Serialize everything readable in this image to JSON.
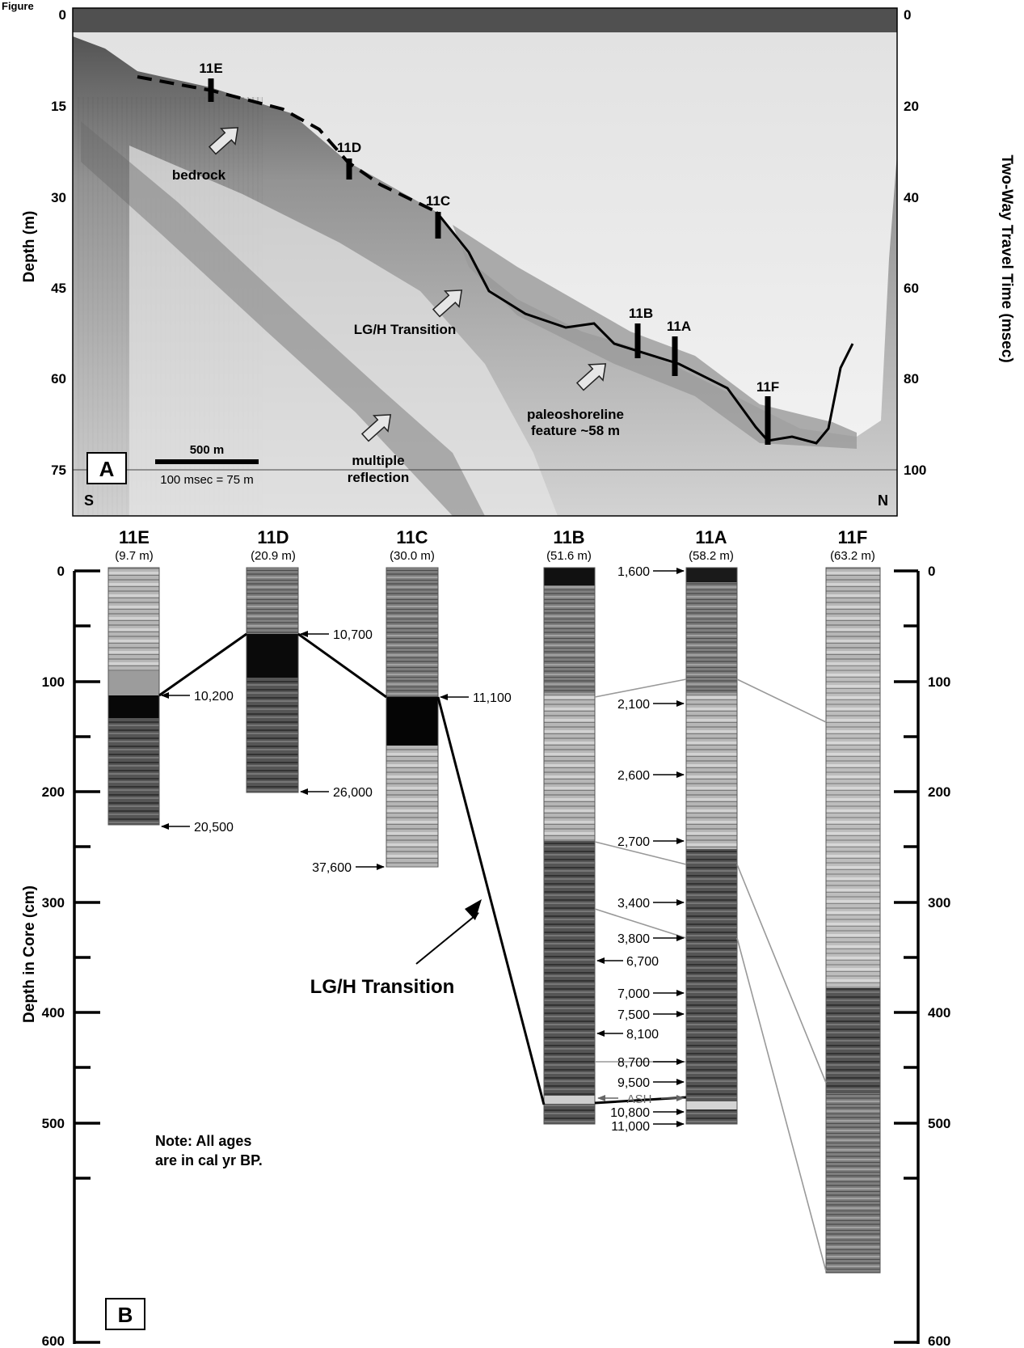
{
  "figure_label": "Figure",
  "panel_a": {
    "label": "A",
    "left_axis_label": "Depth (m)",
    "right_axis_label": "Two-Way Travel Time (msec)",
    "left_ticks": [
      "0",
      "15",
      "30",
      "45",
      "60",
      "75"
    ],
    "right_ticks": [
      "0",
      "20",
      "40",
      "60",
      "80",
      "100"
    ],
    "direction_left": "S",
    "direction_right": "N",
    "scale_bar_label": "500 m",
    "conversion_label": "100 msec = 75 m",
    "core_markers": [
      "11E",
      "11D",
      "11C",
      "11B",
      "11A",
      "11F"
    ],
    "annotations": {
      "bedrock": "bedrock",
      "lgh": "LG/H Transition",
      "paleo_line1": "paleoshoreline",
      "paleo_line2": "feature ~58 m",
      "multiple_line1": "multiple",
      "multiple_line2": "reflection"
    }
  },
  "panel_b": {
    "label": "B",
    "left_axis_label": "Depth in Core (cm)",
    "ticks": [
      "0",
      "100",
      "200",
      "300",
      "400",
      "500",
      "600"
    ],
    "cores": [
      {
        "name": "11E",
        "depth": "(9.7 m)"
      },
      {
        "name": "11D",
        "depth": "(20.9 m)"
      },
      {
        "name": "11C",
        "depth": "(30.0 m)"
      },
      {
        "name": "11B",
        "depth": "(51.6 m)"
      },
      {
        "name": "11A",
        "depth": "(58.2 m)"
      },
      {
        "name": "11F",
        "depth": "(63.2 m)"
      }
    ],
    "ages_11E": [
      "10,200",
      "20,500"
    ],
    "ages_11D": [
      "10,700",
      "26,000"
    ],
    "ages_11C": [
      "11,100",
      "37,600"
    ],
    "ages_11A": [
      "1,600",
      "2,100",
      "2,600",
      "2,700",
      "3,400",
      "3,800",
      "7,000",
      "7,500",
      "8,700",
      "9,500",
      "10,800",
      "11,000"
    ],
    "ages_11B": [
      "6,700",
      "8,100"
    ],
    "ash_label": "ASH",
    "lgh_label": "LG/H Transition",
    "note_line1": "Note: All ages",
    "note_line2": "are in cal yr BP."
  }
}
